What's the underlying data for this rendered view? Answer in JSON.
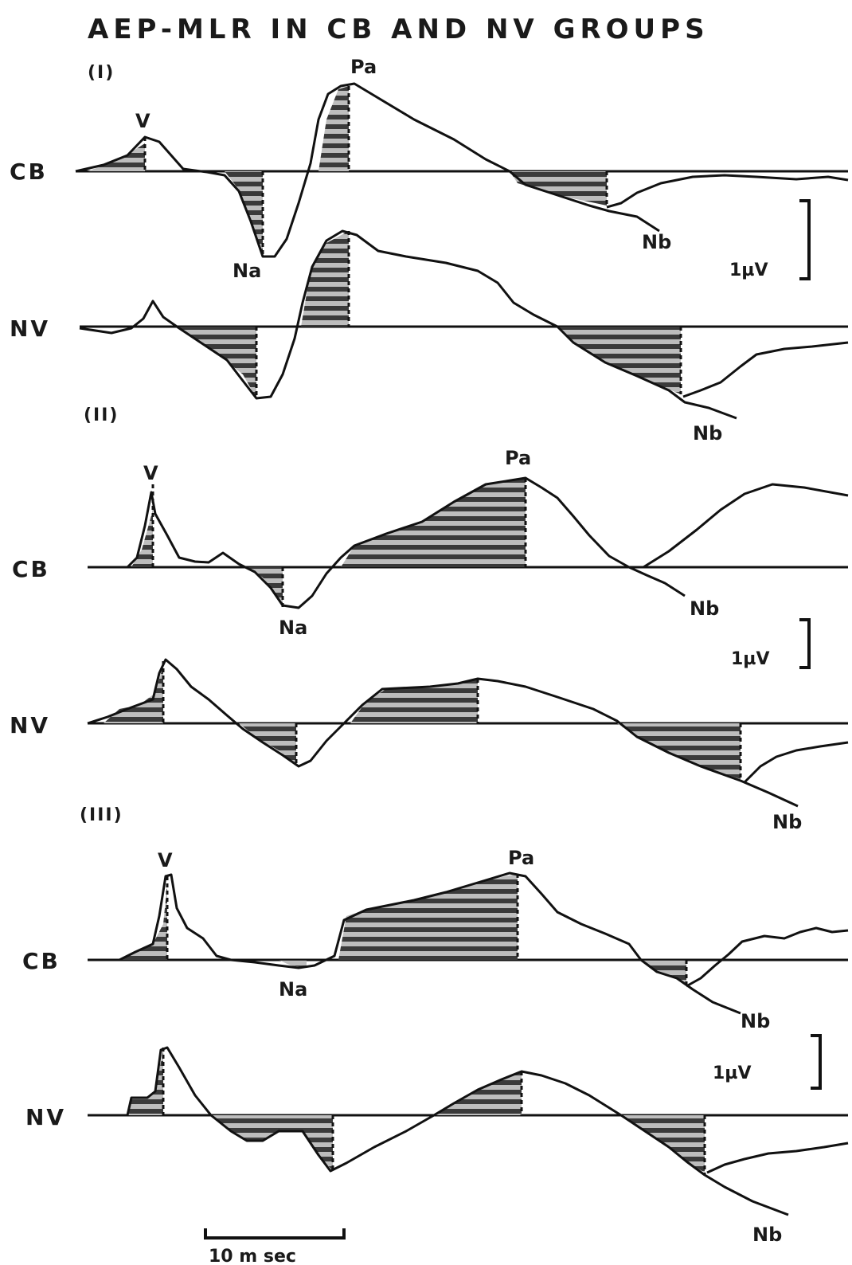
{
  "title": "AEP-MLR IN CB AND NV GROUPS",
  "panels": [
    {
      "label": "(I)",
      "traces": [
        {
          "label": "CB",
          "peaks": {
            "v": "V",
            "pa": "Pa",
            "na": "Na",
            "nb": "Nb"
          }
        },
        {
          "label": "NV",
          "peaks": {
            "nb": "Nb"
          }
        }
      ],
      "scale": "1µV"
    },
    {
      "label": "(II)",
      "traces": [
        {
          "label": "CB",
          "peaks": {
            "v": "V",
            "pa": "Pa",
            "na": "Na",
            "nb": "Nb"
          }
        },
        {
          "label": "NV",
          "peaks": {
            "nb": "Nb"
          }
        }
      ],
      "scale": "1µV"
    },
    {
      "label": "(III)",
      "traces": [
        {
          "label": "CB",
          "peaks": {
            "v": "V",
            "pa": "Pa",
            "na": "Na",
            "nb": "Nb"
          }
        },
        {
          "label": "NV",
          "peaks": {
            "nb": "Nb"
          }
        }
      ],
      "scale": "1µV"
    }
  ],
  "time_scale": "10 m sec",
  "colors": {
    "ink": "#111111",
    "hatch_dark": "#3a3a3a",
    "hatch_light": "#bdbdbd"
  }
}
